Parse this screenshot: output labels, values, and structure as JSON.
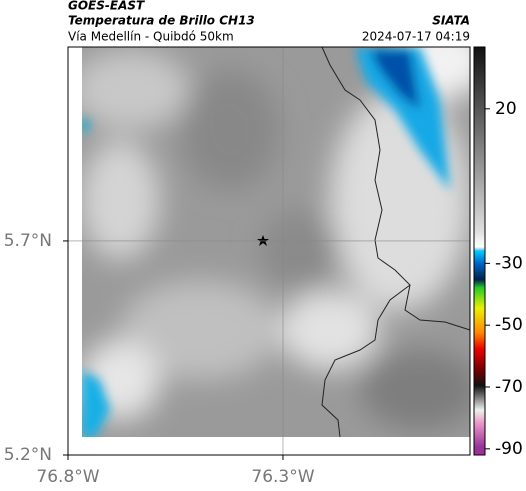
{
  "header": {
    "source": "GOES-EAST",
    "product": "Temperatura de Brillo CH13",
    "agency": "SIATA",
    "region": "Vía Medellín - Quibdó 50km",
    "timestamp": "2024-07-17 04:19"
  },
  "map": {
    "xlim": [
      -76.8,
      -75.865
    ],
    "ylim": [
      5.2,
      6.153
    ],
    "xticks": [
      {
        "value": -76.8,
        "label": "76.8°W"
      },
      {
        "value": -76.3,
        "label": "76.3°W"
      }
    ],
    "yticks": [
      {
        "value": 5.7,
        "label": "5.7°N"
      },
      {
        "value": 5.2,
        "label": "5.2°N"
      }
    ],
    "grid": true
  },
  "colorbar": {
    "lim": [
      -92,
      40
    ],
    "ticks": [
      20,
      -30,
      -50,
      -70,
      -90
    ]
  }
}
